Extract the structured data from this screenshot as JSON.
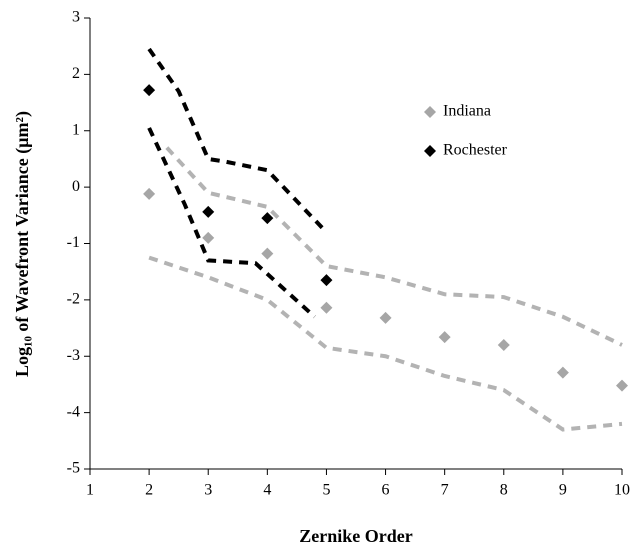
{
  "chart_data": {
    "type": "scatter",
    "x_label": "Zernike Order",
    "y_label": "Log₁₀ of Wavefront Variance (µm²)",
    "xlim": [
      1,
      10
    ],
    "xticks": [
      1,
      2,
      3,
      4,
      5,
      6,
      7,
      8,
      9,
      10
    ],
    "ylim": [
      -5,
      3
    ],
    "yticks": [
      -5,
      -4,
      -3,
      -2,
      -1,
      0,
      1,
      2,
      3
    ],
    "grid": false,
    "legend": "upper right",
    "series": [
      {
        "name": "Indiana",
        "color": "#a6a6a6",
        "marker": "diamond",
        "x": [
          2,
          3,
          4,
          5,
          6,
          7,
          8,
          9,
          10
        ],
        "values": [
          -0.12,
          -0.9,
          -1.18,
          -2.14,
          -2.32,
          -2.66,
          -2.8,
          -3.29,
          -3.52
        ]
      },
      {
        "name": "Rochester",
        "color": "#000000",
        "marker": "diamond",
        "x": [
          2,
          3,
          4,
          5
        ],
        "values": [
          1.72,
          -0.44,
          -0.55,
          -1.65
        ]
      },
      {
        "color": "#b3b3b3",
        "style": "dashed",
        "x": [
          2.3,
          3,
          4,
          5,
          6,
          7,
          8,
          9,
          10
        ],
        "values": [
          0.7,
          -0.1,
          -0.35,
          -1.4,
          -1.6,
          -1.9,
          -1.95,
          -2.3,
          -2.8
        ]
      },
      {
        "color": "#b3b3b3",
        "style": "dashed",
        "x": [
          2,
          3,
          4,
          5,
          6,
          7,
          8,
          9,
          10
        ],
        "values": [
          -1.25,
          -1.6,
          -2.0,
          -2.85,
          -3.0,
          -3.35,
          -3.6,
          -4.3,
          -4.2
        ]
      },
      {
        "color": "#000000",
        "style": "dashed",
        "x": [
          2,
          2.5,
          3,
          3.3,
          4,
          5
        ],
        "values": [
          2.45,
          1.7,
          0.5,
          0.45,
          0.3,
          -0.8
        ]
      },
      {
        "color": "#000000",
        "style": "dashed",
        "x": [
          2,
          2.6,
          3,
          3.8,
          4.8
        ],
        "values": [
          1.05,
          -0.3,
          -1.3,
          -1.35,
          -2.3
        ]
      }
    ]
  }
}
